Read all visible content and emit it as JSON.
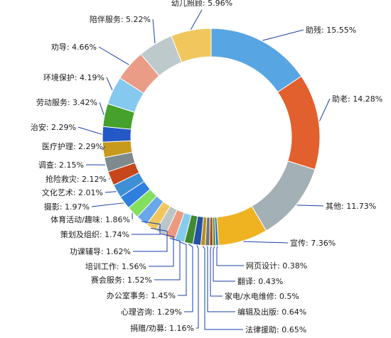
{
  "chart_data": {
    "type": "pie",
    "variant": "donut",
    "title": "",
    "unit": "%",
    "slices": [
      {
        "label": "助残",
        "value": 15.55,
        "text": "助残: 15.55%",
        "color": "#58a5e3"
      },
      {
        "label": "助老",
        "value": 14.28,
        "text": "助老: 14.28%",
        "color": "#e2602d"
      },
      {
        "label": "其他",
        "value": 11.73,
        "text": "其他: 11.73%",
        "color": "#a3b0b5"
      },
      {
        "label": "宣传",
        "value": 7.36,
        "text": "宣传: 7.36%",
        "color": "#efb321"
      },
      {
        "label": "网页设计",
        "value": 0.38,
        "text": "网页设计: 0.38%",
        "color": "#2c63b8"
      },
      {
        "label": "翻译",
        "value": 0.43,
        "text": "翻译: 0.43%",
        "color": "#5a9a2f"
      },
      {
        "label": "家电/水电维修",
        "value": 0.5,
        "text": "家电/水电维修: 0.5%",
        "color": "#ab4420"
      },
      {
        "label": "编辑及出版",
        "value": 0.64,
        "text": "编辑及出版: 0.64%",
        "color": "#6e7676"
      },
      {
        "label": "法律援助",
        "value": 0.65,
        "text": "法律援助: 0.65%",
        "color": "#b88d1a"
      },
      {
        "label": "捐赠/劝募",
        "value": 1.16,
        "text": "捐赠/劝募: 1.16%",
        "color": "#2450a6"
      },
      {
        "label": "心理咨询",
        "value": 1.29,
        "text": "心理咨询: 1.29%",
        "color": "#3f8a32"
      },
      {
        "label": "办公室事务",
        "value": 1.45,
        "text": "办公室事务: 1.45%",
        "color": "#85ccec"
      },
      {
        "label": "赛会服务",
        "value": 1.52,
        "text": "赛会服务: 1.52%",
        "color": "#eb9a80"
      },
      {
        "label": "培训工作",
        "value": 1.56,
        "text": "培训工作: 1.56%",
        "color": "#bcc6c8"
      },
      {
        "label": "功课辅导",
        "value": 1.62,
        "text": "功课辅导: 1.62%",
        "color": "#f1c75d"
      },
      {
        "label": "策划及组织",
        "value": 1.74,
        "text": "策划及组织: 1.74%",
        "color": "#6aa7ea"
      },
      {
        "label": "体育活动/趣味",
        "value": 1.86,
        "text": "体育活动/趣味: 1.86%",
        "color": "#85df5f"
      },
      {
        "label": "摄影",
        "value": 1.97,
        "text": "摄影: 1.97%",
        "color": "#2f7fdf"
      },
      {
        "label": "文化艺术",
        "value": 2.01,
        "text": "文化艺术: 2.01%",
        "color": "#3f8fd5"
      },
      {
        "label": "抢险救灾",
        "value": 2.12,
        "text": "抢险救灾: 2.12%",
        "color": "#c8461c"
      },
      {
        "label": "调查",
        "value": 2.15,
        "text": "调查: 2.15%",
        "color": "#7e8a8d"
      },
      {
        "label": "医疗护理",
        "value": 2.29,
        "text": "医疗护理: 2.29%",
        "color": "#c79a1e"
      },
      {
        "label": "治安",
        "value": 2.29,
        "text": "治安: 2.29%",
        "color": "#2558c7"
      },
      {
        "label": "劳动服务",
        "value": 3.42,
        "text": "劳动服务: 3.42%",
        "color": "#45a02c"
      },
      {
        "label": "环境保护",
        "value": 4.19,
        "text": "环境保护: 4.19%",
        "color": "#86c9ee"
      },
      {
        "label": "劝导",
        "value": 4.66,
        "text": "劝导: 4.66%",
        "color": "#ea9c86"
      },
      {
        "label": "陪伴服务",
        "value": 5.22,
        "text": "陪伴服务: 5.22%",
        "color": "#bdc9cb"
      },
      {
        "label": "幼儿照顾",
        "value": 5.96,
        "text": "幼儿照顾: 5.96%",
        "color": "#f1c75d"
      }
    ]
  }
}
